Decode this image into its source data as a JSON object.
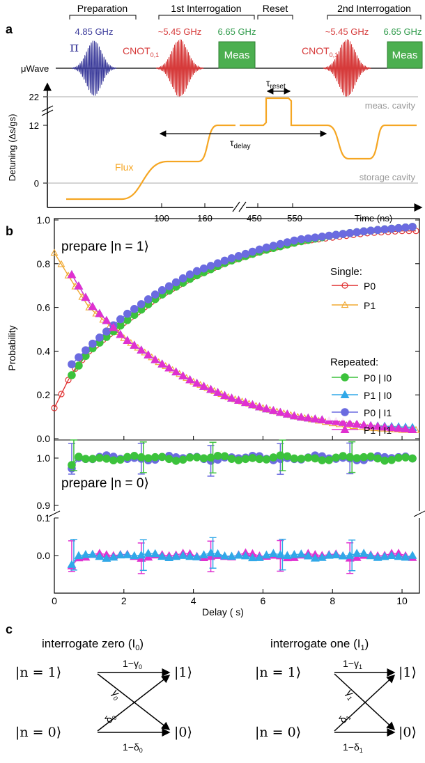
{
  "panel_a": {
    "label": "a",
    "headers": [
      "Preparation",
      "1st Interrogation",
      "Reset",
      "2nd Interrogation"
    ],
    "pi_freq": "4.85 GHz",
    "pi_symbol": "π",
    "cnot_freq": "~5.45 GHz",
    "meas_freq": "6.65 GHz",
    "cnot_label": "CNOT",
    "cnot_sub": "0,1",
    "meas_label": "Meas",
    "uwave_label": "μWave",
    "y_ticks": [
      "22",
      "12",
      "0"
    ],
    "y_label": "Detuning (Δs/gs)",
    "tau_reset": "τreset",
    "tau_delay": "τdelay",
    "meas_cavity": "meas. cavity",
    "storage_cavity": "storage cavity",
    "flux_label": "Flux",
    "x_ticks": [
      "100",
      "160",
      "450",
      "550"
    ],
    "x_label": "Time (ns)",
    "colors": {
      "pi": "#3a3a9a",
      "cnot": "#d63a3a",
      "meas": "#2e9a4a",
      "flux": "#f0a830"
    }
  },
  "panel_b": {
    "label": "b",
    "ylabel": "Probability",
    "xlabel": "Delay (  s)",
    "prepare1": "prepare |n = 1⟩",
    "prepare0": "prepare |n = 0⟩",
    "legend": {
      "single_title": "Single:",
      "repeated_title": "Repeated:",
      "items": [
        "P0",
        "P1",
        "P0 | I0",
        "P1 | I0",
        "P0 | I1",
        "P1 | I1"
      ]
    },
    "upper_yticks": [
      "0.0",
      "0.2",
      "0.4",
      "0.6",
      "0.8",
      "1.0"
    ],
    "lower_yticks_a": [
      "0.9",
      "1.0"
    ],
    "lower_yticks_b": [
      "0.0",
      "0.1"
    ],
    "xticks": [
      "0",
      "2",
      "4",
      "6",
      "8",
      "10"
    ]
  },
  "chart_data": {
    "type": "scatter",
    "xlabel": "Delay (  s)",
    "ylabel": "Probability",
    "xlim": [
      0,
      10.5
    ],
    "ylim": [
      0,
      1.0
    ],
    "series": [
      {
        "name": "P0",
        "x": [
          0,
          0.5,
          1,
          2,
          3,
          4,
          5,
          6,
          7,
          8,
          9,
          10
        ],
        "y": [
          0.14,
          0.3,
          0.4,
          0.53,
          0.65,
          0.74,
          0.81,
          0.86,
          0.9,
          0.92,
          0.94,
          0.95
        ]
      },
      {
        "name": "P1",
        "x": [
          0,
          0.5,
          1,
          2,
          3,
          4,
          5,
          6,
          7,
          8,
          9,
          10
        ],
        "y": [
          0.85,
          0.72,
          0.6,
          0.46,
          0.35,
          0.26,
          0.19,
          0.14,
          0.1,
          0.07,
          0.05,
          0.04
        ]
      },
      {
        "name": "P0 | I0",
        "x": [
          0.5,
          1,
          2,
          3,
          4,
          5,
          6,
          7,
          8,
          9,
          10.4
        ],
        "y": [
          0.29,
          0.4,
          0.53,
          0.65,
          0.74,
          0.81,
          0.86,
          0.9,
          0.93,
          0.95,
          0.97
        ]
      },
      {
        "name": "P1 | I0",
        "x": [
          0.5,
          1,
          2,
          3,
          4,
          5,
          6,
          7,
          8,
          9,
          10.4
        ],
        "y": [
          0.75,
          0.62,
          0.46,
          0.35,
          0.26,
          0.19,
          0.14,
          0.1,
          0.08,
          0.06,
          0.05
        ]
      },
      {
        "name": "P0 | I1",
        "x": [
          0.5,
          1,
          2,
          3,
          4,
          5,
          6,
          7,
          8,
          9,
          10.4
        ],
        "y": [
          0.34,
          0.42,
          0.56,
          0.67,
          0.76,
          0.82,
          0.87,
          0.91,
          0.93,
          0.95,
          0.97
        ]
      },
      {
        "name": "P1 | I1",
        "x": [
          0.5,
          1,
          2,
          3,
          4,
          5,
          6,
          7,
          8,
          9,
          10.4
        ],
        "y": [
          0.75,
          0.62,
          0.46,
          0.35,
          0.26,
          0.19,
          0.14,
          0.1,
          0.08,
          0.06,
          0.04
        ]
      }
    ],
    "lower_panel": {
      "P0_high": 1.0,
      "P1_low": 0.0
    }
  },
  "panel_c": {
    "label": "c",
    "left_title": "interrogate zero (I",
    "left_sub": "0",
    "right_title": "interrogate one (I",
    "right_sub": "1",
    "close_paren": ")",
    "ket_n1": "|n = 1⟩",
    "ket_n0": "|n = 0⟩",
    "ket_1": "|1⟩",
    "ket_0": "|0⟩",
    "left_top": "1−γ",
    "left_top_sub": "0",
    "left_bottom": "1−δ",
    "left_bottom_sub": "0",
    "left_gamma": "γ",
    "left_gamma_sub": "0",
    "left_delta": "δ",
    "left_delta_sub": "0",
    "right_top": "1−γ",
    "right_top_sub": "1",
    "right_bottom": "1−δ",
    "right_bottom_sub": "1",
    "right_gamma": "γ",
    "right_gamma_sub": "1",
    "right_delta": "δ",
    "right_delta_sub": "1"
  }
}
